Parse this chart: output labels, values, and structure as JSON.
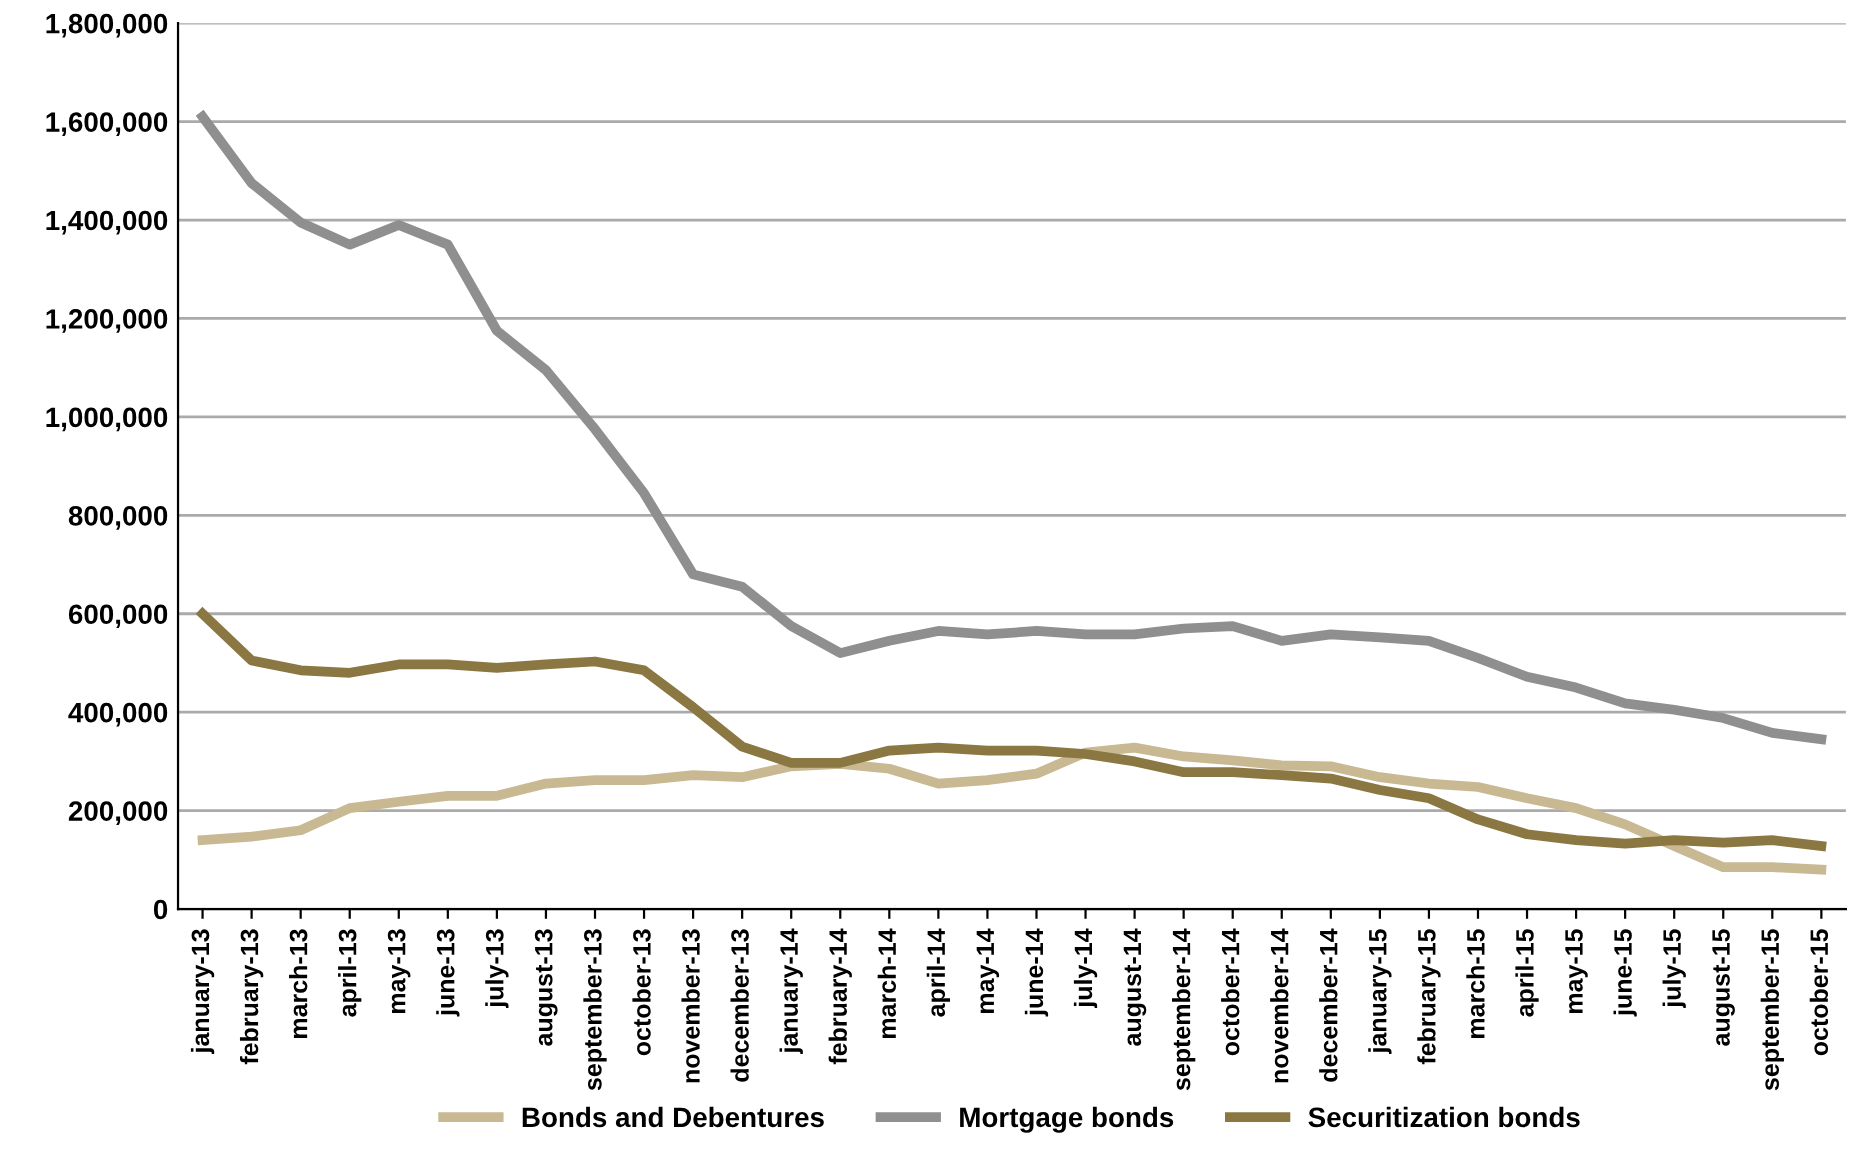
{
  "chart_data": {
    "type": "line",
    "categories": [
      "january-13",
      "february-13",
      "march-13",
      "april-13",
      "may-13",
      "june-13",
      "july-13",
      "august-13",
      "september-13",
      "october-13",
      "november-13",
      "december-13",
      "january-14",
      "february-14",
      "march-14",
      "april-14",
      "may-14",
      "june-14",
      "july-14",
      "august-14",
      "september-14",
      "october-14",
      "november-14",
      "december-14",
      "january-15",
      "february-15",
      "march-15",
      "april-15",
      "may-15",
      "june-15",
      "july-15",
      "august-15",
      "september-15",
      "october-15"
    ],
    "series": [
      {
        "name": "Bonds and Debentures",
        "color": "#c8b992",
        "values": [
          140000,
          147000,
          160000,
          205000,
          218000,
          230000,
          230000,
          255000,
          262000,
          262000,
          272000,
          268000,
          290000,
          295000,
          285000,
          255000,
          262000,
          275000,
          318000,
          328000,
          310000,
          302000,
          292000,
          290000,
          268000,
          255000,
          248000,
          225000,
          205000,
          172000,
          128000,
          85000,
          85000,
          80000
        ]
      },
      {
        "name": "Mortgage bonds",
        "color": "#8f8f8f",
        "values": [
          1610000,
          1475000,
          1395000,
          1350000,
          1390000,
          1350000,
          1175000,
          1095000,
          975000,
          845000,
          680000,
          655000,
          575000,
          520000,
          545000,
          565000,
          558000,
          565000,
          558000,
          558000,
          570000,
          575000,
          545000,
          558000,
          552000,
          545000,
          510000,
          472000,
          450000,
          418000,
          405000,
          388000,
          358000,
          345000
        ]
      },
      {
        "name": "Securitization bonds",
        "color": "#8a7741",
        "values": [
          600000,
          505000,
          485000,
          480000,
          497000,
          497000,
          490000,
          497000,
          503000,
          485000,
          410000,
          330000,
          297000,
          297000,
          322000,
          328000,
          322000,
          322000,
          315000,
          300000,
          278000,
          278000,
          272000,
          265000,
          242000,
          225000,
          182000,
          152000,
          140000,
          133000,
          140000,
          135000,
          140000,
          128000
        ]
      }
    ],
    "ylim": [
      0,
      1800000
    ],
    "yticks": [
      {
        "value": 0,
        "label": "0"
      },
      {
        "value": 200000,
        "label": "200,000"
      },
      {
        "value": 400000,
        "label": "400,000"
      },
      {
        "value": 600000,
        "label": "600,000"
      },
      {
        "value": 800000,
        "label": "800,000"
      },
      {
        "value": 1000000,
        "label": "1,000,000"
      },
      {
        "value": 1200000,
        "label": "1,200,000"
      },
      {
        "value": 1400000,
        "label": "1,400,000"
      },
      {
        "value": 1600000,
        "label": "1,600,000"
      },
      {
        "value": 1800000,
        "label": "1,800,000"
      }
    ],
    "grid": "y",
    "legend": "bottom",
    "marker": "none",
    "line_style": "solid"
  }
}
